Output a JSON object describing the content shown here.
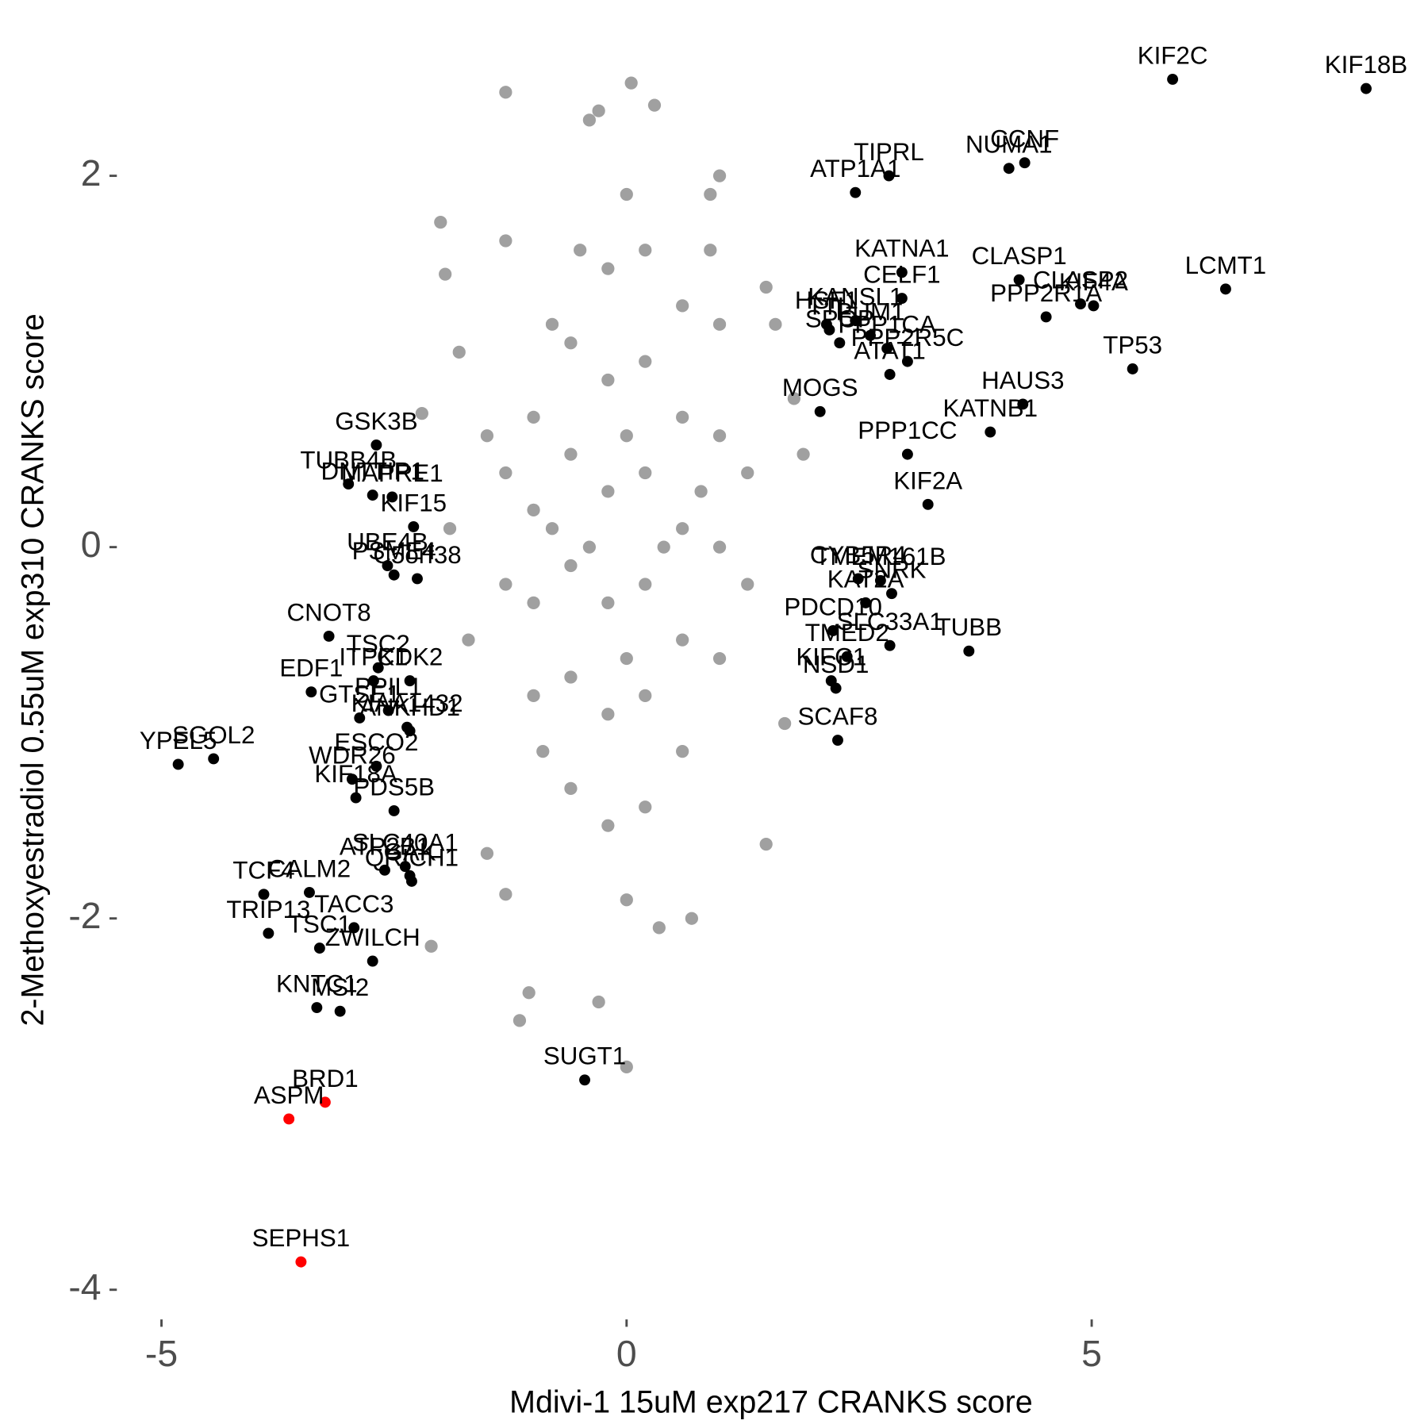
{
  "chart_data": {
    "type": "scatter",
    "x_label": "Mdivi-1 15uM exp217 CRANKS score",
    "y_label": "2-Methoxyestradiol 0.55uM exp310 CRANKS score",
    "xlim": [
      -5.45,
      8.2
    ],
    "ylim": [
      -4.14,
      2.6
    ],
    "xticks": [
      -5,
      0,
      5
    ],
    "yticks": [
      -4,
      -2,
      0,
      2
    ],
    "grid": false,
    "series": [
      {
        "color": "#a0a0a0",
        "x": [
          -1.3,
          0.05,
          -0.3,
          0.3,
          -0.4,
          -2,
          -1.95,
          -1.3,
          -1.8,
          -2.2,
          1.0,
          0.9,
          1.5,
          1.6,
          1.5,
          -1.05,
          -1.15,
          -0.3,
          0,
          0.35,
          0.7,
          -1.3,
          -1.5,
          -2.1,
          1.7,
          1.9,
          1.8,
          -1.7,
          -1.9,
          -1.5,
          -1,
          -1,
          -1,
          -1,
          -0.8,
          -0.6,
          -0.6,
          -0.6,
          -0.6,
          -0.6,
          -0.5,
          -0.2,
          -0.2,
          -0.2,
          -0.2,
          -0.2,
          -0.2,
          0.2,
          0.2,
          0.2,
          0.2,
          0.2,
          0.2,
          0.6,
          0.6,
          0.6,
          0.6,
          0.6,
          1,
          1,
          1,
          1,
          1.3,
          1.3,
          -1.3,
          -1.3,
          -0.9,
          0.9,
          0,
          0,
          -0.4,
          0.4,
          0,
          0,
          -0.8,
          0.8
        ],
        "y": [
          2.45,
          2.5,
          2.35,
          2.38,
          2.3,
          1.75,
          1.47,
          1.65,
          1.05,
          0.72,
          2.0,
          1.9,
          1.4,
          1.2,
          -1.6,
          -2.4,
          -2.55,
          -2.45,
          -2.8,
          -2.05,
          -2.0,
          -1.87,
          -1.65,
          -2.15,
          -0.95,
          0.5,
          0.8,
          -0.5,
          0.1,
          0.6,
          -0.8,
          -0.3,
          0.2,
          0.7,
          1.2,
          -1.3,
          -0.7,
          -0.1,
          0.5,
          1.1,
          1.6,
          -1.5,
          -0.9,
          -0.3,
          0.3,
          0.9,
          1.5,
          -1.4,
          -0.8,
          -0.2,
          0.4,
          1.0,
          1.6,
          -1.1,
          -0.5,
          0.1,
          0.7,
          1.3,
          -0.6,
          0.0,
          0.6,
          1.2,
          -0.2,
          0.4,
          -0.2,
          0.4,
          -1.1,
          1.6,
          -1.9,
          1.9,
          0,
          0,
          0.6,
          -0.6,
          0.1,
          0.3
        ]
      },
      {
        "color": "#000000",
        "labels": [
          "KIF2C",
          "KIF18B",
          "CCNF",
          "NUMA1",
          "TIPRL",
          "ATP1A1",
          "LCMT1",
          "CLASP1",
          "KATNA1",
          "CELF1",
          "KANSL1",
          "CLASP2",
          "KIF4A",
          "PUM1",
          "HSF1",
          "TTL",
          "PPP1CA",
          "PPP2R5C",
          "SPOP",
          "TP53",
          "ATAT1",
          "PPP2R1A",
          "MOGS",
          "HAUS3",
          "KATNB1",
          "PPP1CC",
          "KIF2A",
          "TMEM161B",
          "SNRK",
          "KAT2A",
          "PDCD10",
          "CYB5R4",
          "TUBB",
          "TMED2",
          "NSD1",
          "KIFC1",
          "SLC33A1",
          "SCAF8",
          "SUGT1",
          "GSK3B",
          "TUBB4B",
          "DNTTIP1",
          "MAPRE1",
          "UBE4B",
          "KIF15",
          "C5orf38",
          "PSME4",
          "CNOT8",
          "TSC2",
          "CDK2",
          "EDF1",
          "PPIL1",
          "ITPK1",
          "GTSE1",
          "KIAA1432",
          "ANKHD1",
          "SGOL2",
          "YPEL5",
          "WDR26",
          "ESCO2",
          "KIF18A",
          "PDS5B",
          "CALM2",
          "ATP2B1",
          "SLC40A1",
          "QRICH1",
          "GAK",
          "TCF4",
          "TACC3",
          "TRIP13",
          "TSC1",
          "ZWILCH",
          "KNTC1",
          "MSI2"
        ],
        "x": [
          5.87,
          7.95,
          4.28,
          4.11,
          2.82,
          2.46,
          6.44,
          4.22,
          2.96,
          2.96,
          2.46,
          4.88,
          5.02,
          2.62,
          2.15,
          2.18,
          2.8,
          3.02,
          2.29,
          5.44,
          2.83,
          4.51,
          2.08,
          4.26,
          3.91,
          3.02,
          3.24,
          2.73,
          2.85,
          2.57,
          2.22,
          2.49,
          3.68,
          2.37,
          2.25,
          2.2,
          2.83,
          2.27,
          -0.45,
          -2.69,
          -2.99,
          -2.73,
          -2.52,
          -2.57,
          -2.29,
          -2.25,
          -2.5,
          -3.2,
          -2.67,
          -2.33,
          -3.39,
          -2.56,
          -2.72,
          -2.87,
          -2.36,
          -2.33,
          -4.44,
          -4.82,
          -2.95,
          -2.69,
          -2.91,
          -2.5,
          -3.41,
          -2.6,
          -2.38,
          -2.31,
          -2.33,
          -3.9,
          -2.93,
          -3.85,
          -3.3,
          -2.73,
          -3.33,
          -3.08
        ],
        "y": [
          2.52,
          2.47,
          2.07,
          2.04,
          2.0,
          1.91,
          1.39,
          1.44,
          1.48,
          1.34,
          1.22,
          1.31,
          1.3,
          1.14,
          1.2,
          1.17,
          1.07,
          1.0,
          1.1,
          0.96,
          0.93,
          1.24,
          0.73,
          0.77,
          0.62,
          0.5,
          0.23,
          -0.18,
          -0.25,
          -0.3,
          -0.45,
          -0.17,
          -0.56,
          -0.59,
          -0.76,
          -0.72,
          -0.53,
          -1.04,
          -2.87,
          0.55,
          0.34,
          0.28,
          0.27,
          -0.1,
          0.11,
          -0.17,
          -0.15,
          -0.48,
          -0.65,
          -0.72,
          -0.78,
          -0.88,
          -0.72,
          -0.92,
          -0.97,
          -0.99,
          -1.14,
          -1.17,
          -1.25,
          -1.18,
          -1.35,
          -1.42,
          -1.86,
          -1.74,
          -1.72,
          -1.8,
          -1.77,
          -1.87,
          -2.05,
          -2.08,
          -2.16,
          -2.23,
          -2.48,
          -2.5
        ]
      },
      {
        "color": "#ff0000",
        "labels": [
          "BRD1",
          "ASPM",
          "SEPHS1"
        ],
        "x": [
          -3.24,
          -3.63,
          -3.5
        ],
        "y": [
          -2.99,
          -3.08,
          -3.85
        ]
      }
    ]
  }
}
